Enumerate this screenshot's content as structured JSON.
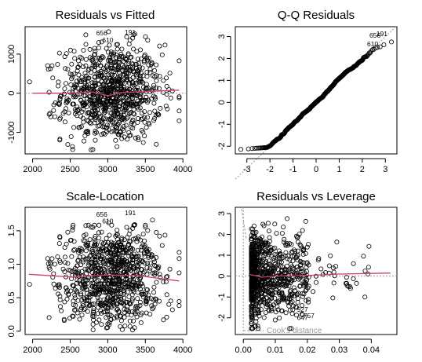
{
  "chart_data": [
    {
      "type": "scatter",
      "title": "Residuals vs Fitted",
      "xlabel": "",
      "ylabel": "",
      "xlim": [
        1900,
        4050
      ],
      "ylim": [
        -1550,
        1700
      ],
      "xticks": [
        "2000",
        "2500",
        "3000",
        "3500",
        "4000"
      ],
      "xtick_values": [
        2000,
        2500,
        3000,
        3500,
        4000
      ],
      "yticks": [
        "-1000",
        "0",
        "1000"
      ],
      "ytick_values": [
        -1000,
        0,
        1000
      ],
      "point_labels": [
        {
          "text": "656",
          "x": 2920,
          "y": 1480
        },
        {
          "text": "191",
          "x": 3300,
          "y": 1500
        },
        {
          "text": "610",
          "x": 3000,
          "y": 1300
        }
      ],
      "smooth": {
        "x": [
          2000,
          2500,
          2800,
          3000,
          3200,
          3500,
          3950
        ],
        "y": [
          0,
          0,
          30,
          -60,
          20,
          40,
          80
        ]
      },
      "point_cloud": {
        "n": 900,
        "x_mean": 3050,
        "x_sd": 330,
        "y_sd": 620,
        "y_clip": [
          -1500,
          1650
        ]
      },
      "smooth_color": "#d1406a"
    },
    {
      "type": "scatter",
      "title": "Q-Q Residuals",
      "xlabel": "",
      "ylabel": "",
      "xlim": [
        -3.5,
        3.5
      ],
      "ylim": [
        -2.35,
        3.45
      ],
      "xticks": [
        "-3",
        "-2",
        "-1",
        "0",
        "1",
        "2",
        "3"
      ],
      "xtick_values": [
        -3,
        -2,
        -1,
        0,
        1,
        2,
        3
      ],
      "yticks": [
        "-2",
        "-1",
        "0",
        "1",
        "2",
        "3"
      ],
      "ytick_values": [
        -2,
        -1,
        0,
        1,
        2,
        3
      ],
      "point_labels": [
        {
          "text": "656",
          "x": 2.55,
          "y": 2.95
        },
        {
          "text": "191",
          "x": 2.85,
          "y": 3.02
        },
        {
          "text": "610",
          "x": 2.45,
          "y": 2.55
        }
      ],
      "reference_line": {
        "slope": 1,
        "intercept": 0,
        "dashed": true
      },
      "qq": {
        "n": 900,
        "upper_cap": 2.6,
        "lower_cap": -2.15
      }
    },
    {
      "type": "scatter",
      "title": "Scale-Location",
      "xlabel": "",
      "ylabel": "",
      "xlim": [
        1900,
        4050
      ],
      "ylim": [
        -0.05,
        1.85
      ],
      "xticks": [
        "2000",
        "2500",
        "3000",
        "3500",
        "4000"
      ],
      "xtick_values": [
        2000,
        2500,
        3000,
        3500,
        4000
      ],
      "yticks": [
        "0.0",
        "0.5",
        "1.0",
        "1.5"
      ],
      "ytick_values": [
        0,
        0.5,
        1.0,
        1.5
      ],
      "point_labels": [
        {
          "text": "656",
          "x": 2920,
          "y": 1.71
        },
        {
          "text": "191",
          "x": 3300,
          "y": 1.73
        },
        {
          "text": "610",
          "x": 3000,
          "y": 1.61
        }
      ],
      "smooth": {
        "x": [
          1950,
          2500,
          3000,
          3400,
          3950
        ],
        "y": [
          0.85,
          0.81,
          0.84,
          0.83,
          0.75
        ]
      },
      "smooth_color": "#d1406a"
    },
    {
      "type": "scatter",
      "title": "Residuals vs Leverage",
      "xlabel": "",
      "ylabel": "",
      "xlim": [
        -0.0025,
        0.048
      ],
      "ylim": [
        -2.8,
        3.3
      ],
      "xticks": [
        "0.00",
        "0.01",
        "0.02",
        "0.03",
        "0.04"
      ],
      "xtick_values": [
        0,
        0.01,
        0.02,
        0.03,
        0.04
      ],
      "yticks": [
        "-2",
        "-1",
        "0",
        "1",
        "2",
        "3"
      ],
      "ytick_values": [
        -2,
        -1,
        0,
        1,
        2,
        3
      ],
      "point_labels": [
        {
          "text": "927",
          "x": 0.0185,
          "y": -1.7
        },
        {
          "text": "757",
          "x": 0.0205,
          "y": -2.0
        },
        {
          "text": "647",
          "x": 0.0185,
          "y": -2.1
        }
      ],
      "annotation": "Cook's distance",
      "smooth": {
        "x": [
          0.002,
          0.006,
          0.01,
          0.02,
          0.03,
          0.046
        ],
        "y": [
          0.08,
          -0.05,
          0.0,
          0.03,
          0.1,
          0.15
        ]
      },
      "smooth_color": "#d1406a"
    }
  ]
}
